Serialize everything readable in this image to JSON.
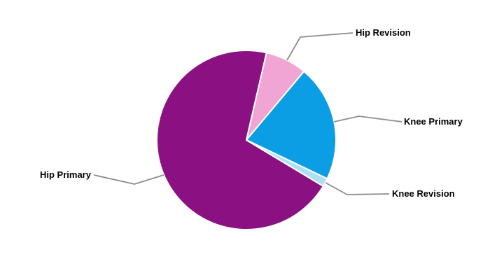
{
  "chart_data": {
    "type": "pie",
    "title": "",
    "slices": [
      {
        "label": "Hip Primary",
        "value": 70,
        "color": "#8B1182"
      },
      {
        "label": "Hip Revision",
        "value": 7.5,
        "color": "#F0A5D5"
      },
      {
        "label": "Knee Primary",
        "value": 21,
        "color": "#0B9EE4"
      },
      {
        "label": "Knee Revision",
        "value": 1.5,
        "color": "#ADE0F6"
      }
    ],
    "values_are_percent_estimates": true,
    "start_angle_deg": 121,
    "legend_position": "callout-labels",
    "leader_line_color": "#8C8C8C",
    "label_text_color": "#000000",
    "slice_border_color": "#FFFFFF",
    "background": "#FFFFFF"
  }
}
